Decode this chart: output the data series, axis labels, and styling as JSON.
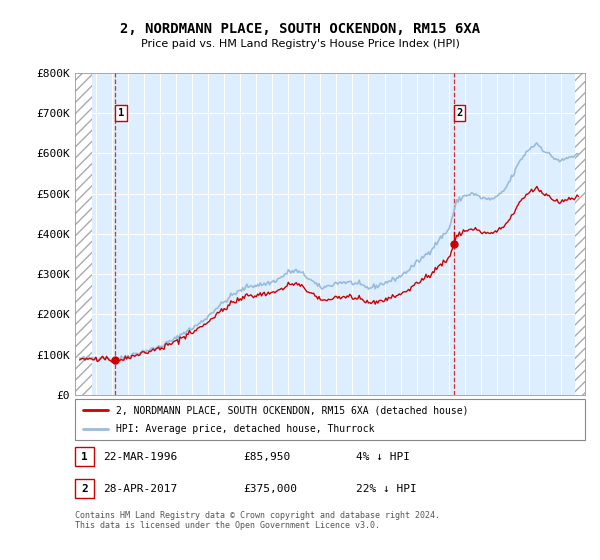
{
  "title": "2, NORDMANN PLACE, SOUTH OCKENDON, RM15 6XA",
  "subtitle": "Price paid vs. HM Land Registry's House Price Index (HPI)",
  "ylim": [
    0,
    800000
  ],
  "yticks": [
    0,
    100000,
    200000,
    300000,
    400000,
    500000,
    600000,
    700000,
    800000
  ],
  "ytick_labels": [
    "£0",
    "£100K",
    "£200K",
    "£300K",
    "£400K",
    "£500K",
    "£600K",
    "£700K",
    "£800K"
  ],
  "transaction1": {
    "date_num": 1996.22,
    "price": 85950,
    "label": "1"
  },
  "transaction2": {
    "date_num": 2017.32,
    "price": 375000,
    "label": "2"
  },
  "legend_line1": "2, NORDMANN PLACE, SOUTH OCKENDON, RM15 6XA (detached house)",
  "legend_line2": "HPI: Average price, detached house, Thurrock",
  "footnote": "Contains HM Land Registry data © Crown copyright and database right 2024.\nThis data is licensed under the Open Government Licence v3.0.",
  "line_color_red": "#cc0000",
  "line_color_blue": "#99bbdd",
  "background_plot": "#ddeeff",
  "vline_color": "#cc0000",
  "xlim_left": 1993.7,
  "xlim_right": 2025.5,
  "hatch_left_end": 1994.75,
  "hatch_right_start": 2024.9
}
